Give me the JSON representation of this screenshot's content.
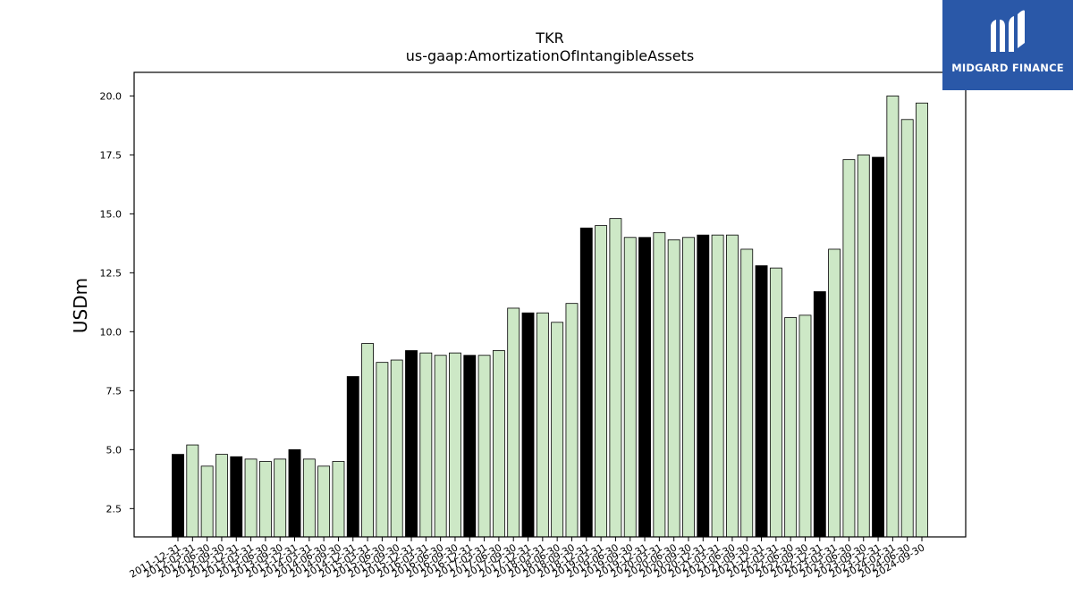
{
  "chart_data": {
    "type": "bar",
    "title": "TKR",
    "subtitle": "us-gaap:AmortizationOfIntangibleAssets",
    "xlabel": "",
    "ylabel": "USDm",
    "ylim": [
      1.3,
      21.0
    ],
    "yticks": [
      "2.5",
      "5.0",
      "7.5",
      "10.0",
      "12.5",
      "15.0",
      "17.5",
      "20.0"
    ],
    "categories": [
      "2011-12-31",
      "2012-03-31",
      "2012-06-30",
      "2012-09-30",
      "2012-12-31",
      "2013-03-31",
      "2013-06-30",
      "2013-09-30",
      "2013-12-31",
      "2014-03-31",
      "2014-06-30",
      "2014-09-30",
      "2014-12-31",
      "2015-03-31",
      "2015-06-30",
      "2015-09-30",
      "2015-12-31",
      "2016-03-31",
      "2016-06-30",
      "2016-09-30",
      "2016-12-31",
      "2017-03-31",
      "2017-06-30",
      "2017-09-30",
      "2017-12-31",
      "2018-03-31",
      "2018-06-30",
      "2018-09-30",
      "2018-12-31",
      "2019-03-31",
      "2019-06-30",
      "2019-09-30",
      "2019-12-31",
      "2020-03-31",
      "2020-06-30",
      "2020-09-30",
      "2020-12-31",
      "2021-03-31",
      "2021-06-30",
      "2021-09-30",
      "2021-12-31",
      "2022-03-31",
      "2022-06-30",
      "2022-09-30",
      "2022-12-31",
      "2023-03-31",
      "2023-06-30",
      "2023-09-30",
      "2023-12-31",
      "2024-03-31",
      "2024-06-30",
      "2024-09-30"
    ],
    "values": [
      4.8,
      5.2,
      4.3,
      4.8,
      4.7,
      4.6,
      4.5,
      4.6,
      5.0,
      4.6,
      4.3,
      4.5,
      8.1,
      9.5,
      8.7,
      8.8,
      9.2,
      9.1,
      9.0,
      9.1,
      9.0,
      9.0,
      9.2,
      11.0,
      10.8,
      10.8,
      10.4,
      11.2,
      14.4,
      14.5,
      14.8,
      14.0,
      14.0,
      14.2,
      13.9,
      14.0,
      14.1,
      14.1,
      14.1,
      13.5,
      12.8,
      12.7,
      10.6,
      10.7,
      11.7,
      13.5,
      17.3,
      17.5,
      17.4,
      20.0,
      19.0,
      19.7
    ],
    "highlight_month": "12",
    "colors": {
      "highlight": "#000000",
      "normal": "#cde8c6",
      "edge": "#000000"
    },
    "grid": false
  },
  "logo": {
    "text": "MIDGARD FINANCE",
    "icon": "midgard-logo-icon"
  }
}
